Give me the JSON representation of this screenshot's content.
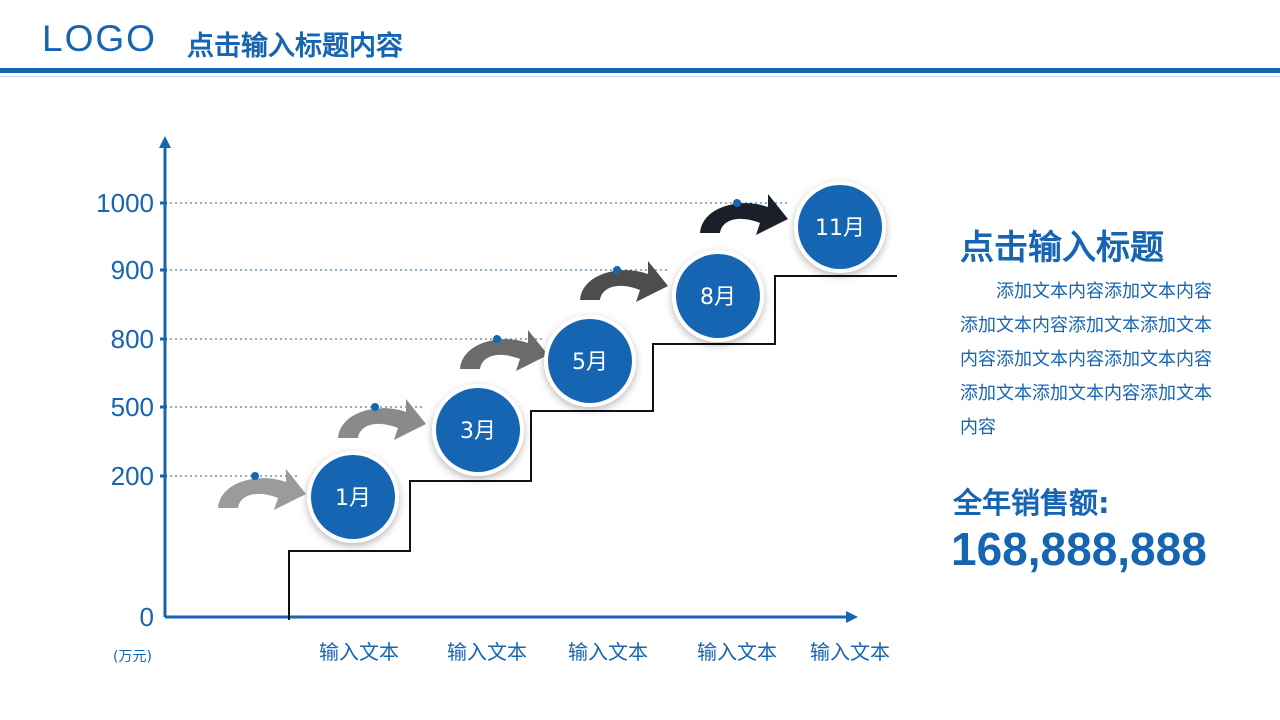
{
  "header": {
    "logo": "LOGO",
    "title": "点击输入标题内容"
  },
  "chart_data": {
    "type": "line",
    "y_ticks": [
      "1000",
      "900",
      "800",
      "500",
      "200",
      "0"
    ],
    "y_unit": "(万元)",
    "x_labels": [
      "输入文本",
      "输入文本",
      "输入文本",
      "输入文本",
      "输入文本"
    ],
    "points": [
      {
        "label": "1月",
        "value": 200
      },
      {
        "label": "3月",
        "value": 500
      },
      {
        "label": "5月",
        "value": 800
      },
      {
        "label": "8月",
        "value": 900
      },
      {
        "label": "11月",
        "value": 1000
      }
    ],
    "grid": "dotted horizontal",
    "colors": {
      "axis": "#1565b3",
      "circle": "#1565b3",
      "step_line": "#111111",
      "arrows": [
        "#9b9b9b",
        "#8a8a8a",
        "#6b6b6b",
        "#4d4d4d",
        "#1a1f2a"
      ]
    }
  },
  "side": {
    "title": "点击输入标题",
    "body": "添加文本内容添加文本内容添加文本内容添加文本添加文本内容添加文本内容添加文本内容添加文本添加文本内容添加文本内容",
    "sales_label": "全年销售额:",
    "sales_value": "168,888,888"
  }
}
